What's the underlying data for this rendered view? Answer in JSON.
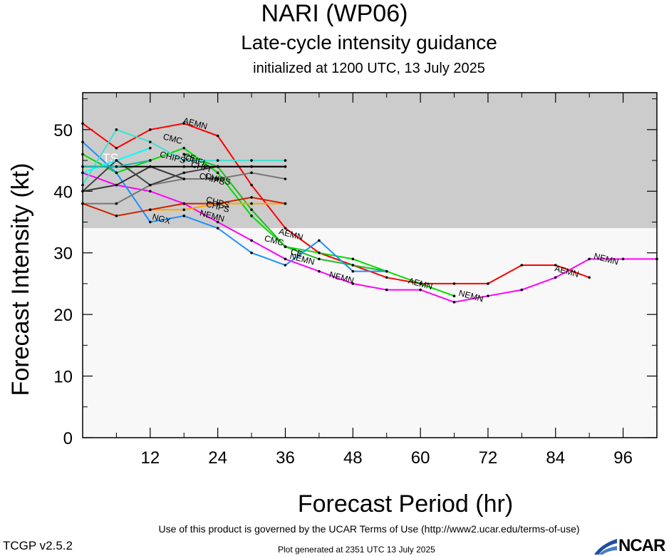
{
  "header": {
    "title": "NARI (WP06)",
    "subtitle": "Late-cycle intensity guidance",
    "initialized": "initialized at 1200 UTC, 13 July 2025"
  },
  "footer": {
    "terms": "Use of this product is governed by the UCAR Terms of Use (http://www2.ucar.edu/terms-of-use)",
    "version": "TCGP v2.5.2",
    "generated": "Plot generated at 2351 UTC   13 July 2025",
    "logo_text": "NCAR",
    "logo_icon": "ncar-swoosh-icon"
  },
  "chart_data": {
    "type": "line",
    "xlabel": "Forecast Period (hr)",
    "ylabel": "Forecast Intensity (kt)",
    "xlim": [
      0,
      102
    ],
    "ylim": [
      0,
      56
    ],
    "xticks": [
      12,
      24,
      36,
      48,
      60,
      72,
      84,
      96
    ],
    "yticks": [
      0,
      10,
      20,
      30,
      40,
      50
    ],
    "bands": [
      {
        "label": "TS",
        "from": 34,
        "to": 56,
        "color": "#cccccc"
      },
      {
        "label": "",
        "from": 0,
        "to": 34,
        "color": "#f8f8f8"
      }
    ],
    "series": [
      {
        "name": "AEMN",
        "color": "#ff0000",
        "points": [
          [
            0,
            51
          ],
          [
            6,
            47
          ],
          [
            12,
            50
          ],
          [
            18,
            51
          ],
          [
            24,
            49
          ],
          [
            30,
            41
          ],
          [
            36,
            34
          ],
          [
            42,
            30
          ],
          [
            48,
            28
          ],
          [
            54,
            26
          ],
          [
            60,
            25
          ],
          [
            66,
            25
          ],
          [
            72,
            25
          ],
          [
            78,
            28
          ],
          [
            84,
            28
          ],
          [
            90,
            26
          ]
        ],
        "labels": [
          [
            20,
            51
          ],
          [
            37,
            33
          ],
          [
            60,
            25
          ],
          [
            86,
            27
          ]
        ]
      },
      {
        "name": "NEMN",
        "color": "#ff00ff",
        "points": [
          [
            0,
            43
          ],
          [
            6,
            41
          ],
          [
            12,
            40
          ],
          [
            18,
            38
          ],
          [
            24,
            35
          ],
          [
            30,
            32
          ],
          [
            36,
            29
          ],
          [
            42,
            27
          ],
          [
            48,
            25
          ],
          [
            54,
            24
          ],
          [
            60,
            24
          ],
          [
            66,
            22
          ],
          [
            72,
            23
          ],
          [
            78,
            24
          ],
          [
            84,
            26
          ],
          [
            90,
            29
          ],
          [
            96,
            29
          ],
          [
            102,
            29
          ]
        ],
        "labels": [
          [
            23,
            36
          ],
          [
            39,
            29
          ],
          [
            46,
            26
          ],
          [
            69,
            23
          ],
          [
            93,
            29
          ]
        ]
      },
      {
        "name": "CMC",
        "color": "#00dd00",
        "points": [
          [
            0,
            46
          ],
          [
            6,
            43
          ],
          [
            12,
            45
          ],
          [
            18,
            47
          ],
          [
            24,
            43
          ],
          [
            30,
            36
          ],
          [
            36,
            31
          ],
          [
            42,
            30
          ],
          [
            48,
            29
          ],
          [
            54,
            27
          ],
          [
            60,
            25
          ],
          [
            66,
            23
          ]
        ],
        "labels": [
          [
            16,
            48.5
          ],
          [
            34,
            32
          ]
        ]
      },
      {
        "name": "CE",
        "color": "#22bb22",
        "points": [
          [
            18,
            46
          ],
          [
            24,
            44
          ],
          [
            30,
            37
          ],
          [
            36,
            31
          ],
          [
            42,
            29
          ],
          [
            48,
            28
          ],
          [
            54,
            27
          ]
        ],
        "labels": [
          [
            19,
            45.5
          ],
          [
            38,
            30
          ]
        ]
      },
      {
        "name": "NGX",
        "color": "#1e90ff",
        "points": [
          [
            0,
            48
          ],
          [
            6,
            43
          ],
          [
            12,
            35
          ],
          [
            18,
            36
          ],
          [
            24,
            34
          ],
          [
            30,
            30
          ],
          [
            36,
            28
          ],
          [
            42,
            32
          ],
          [
            48,
            27
          ],
          [
            54,
            27
          ]
        ],
        "labels": [
          [
            14,
            35.5
          ]
        ]
      },
      {
        "name": "CHIPS",
        "color": "#333333",
        "points": [
          [
            0,
            40
          ],
          [
            6,
            41
          ],
          [
            12,
            44
          ],
          [
            18,
            42
          ],
          [
            24,
            42
          ]
        ],
        "labels": [
          [
            24,
            42
          ]
        ]
      },
      {
        "name": "CHIPS",
        "color": "#777777",
        "points": [
          [
            0,
            38
          ],
          [
            6,
            38
          ],
          [
            12,
            41
          ],
          [
            18,
            42
          ],
          [
            24,
            42
          ],
          [
            30,
            43
          ],
          [
            36,
            42
          ]
        ],
        "labels": [
          [
            23,
            42
          ]
        ]
      },
      {
        "name": "CHIPS",
        "color": "#444444",
        "points": [
          [
            0,
            40
          ],
          [
            6,
            45
          ],
          [
            12,
            41
          ],
          [
            18,
            43
          ],
          [
            24,
            44
          ],
          [
            30,
            44
          ],
          [
            36,
            44
          ]
        ],
        "labels": [
          [
            16,
            45.5
          ]
        ]
      },
      {
        "name": "CHFI",
        "color": "#000000",
        "points": [
          [
            0,
            44
          ],
          [
            6,
            44
          ],
          [
            12,
            44
          ],
          [
            18,
            44
          ],
          [
            24,
            44
          ],
          [
            30,
            44
          ],
          [
            36,
            44
          ]
        ],
        "labels": [
          [
            21,
            44
          ]
        ]
      },
      {
        "name": "CHFI",
        "color": "#40e0d0",
        "points": [
          [
            0,
            41
          ],
          [
            6,
            50
          ],
          [
            12,
            48
          ],
          [
            18,
            45
          ],
          [
            24,
            45
          ],
          [
            30,
            45
          ],
          [
            36,
            45
          ]
        ],
        "labels": [
          [
            20,
            45
          ]
        ]
      },
      {
        "name": "CHPS",
        "color": "#ffa500",
        "points": [
          [
            12,
            37
          ],
          [
            18,
            37
          ],
          [
            24,
            38
          ],
          [
            30,
            38
          ],
          [
            36,
            38
          ]
        ],
        "labels": [
          [
            24,
            38.2
          ]
        ]
      },
      {
        "name": "CHPS",
        "color": "#cc2200",
        "points": [
          [
            0,
            38
          ],
          [
            6,
            36
          ],
          [
            12,
            37
          ],
          [
            18,
            38
          ],
          [
            24,
            38
          ],
          [
            30,
            39
          ],
          [
            36,
            38
          ]
        ],
        "labels": [
          [
            24,
            37.5
          ]
        ]
      },
      {
        "name": "",
        "color": "#00ffff",
        "points": [
          [
            0,
            43
          ],
          [
            6,
            45
          ],
          [
            12,
            47
          ]
        ],
        "labels": []
      },
      {
        "name": "",
        "color": "#20b2aa",
        "points": [
          [
            0,
            44
          ],
          [
            6,
            44
          ],
          [
            12,
            45
          ]
        ],
        "labels": []
      }
    ]
  }
}
